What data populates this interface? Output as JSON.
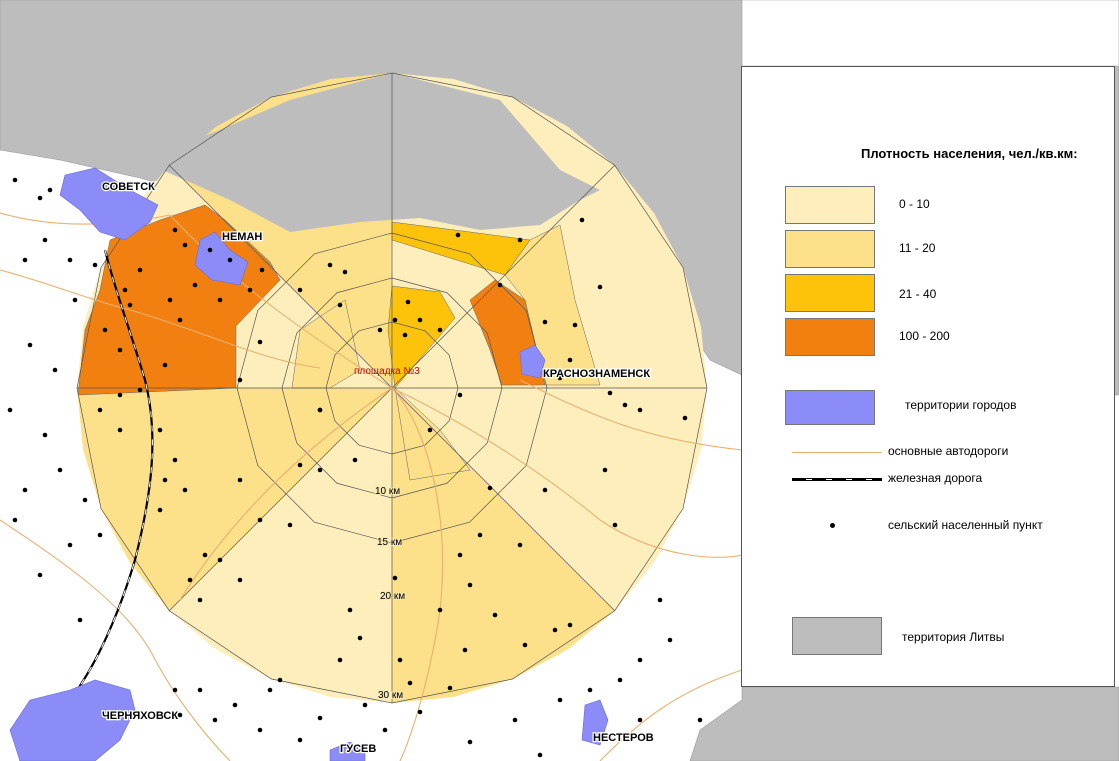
{
  "colors": {
    "density_0_10": "#fdeebc",
    "density_11_20": "#fde08a",
    "density_21_40": "#fcc30a",
    "density_100_200": "#f28010",
    "city": "#8c8cf8",
    "lithuania": "#bdbdbd",
    "road": "#e8b070",
    "rail": "#000000",
    "settlement": "#000000"
  },
  "map": {
    "site_label": "площадка №3",
    "ring_labels": [
      "10 км",
      "15 км",
      "20 км",
      "30 км"
    ],
    "cities": [
      "СОВЕТСК",
      "НЕМАН",
      "КРАСНОЗНАМЕНСК",
      "ЧЕРНЯХОВСК",
      "ГУСЕВ",
      "НЕСТЕРОВ"
    ]
  },
  "legend": {
    "title": "Плотность населения, чел./кв.км:",
    "density_classes": [
      "0 - 10",
      "11 - 20",
      "21 - 40",
      "100 - 200"
    ],
    "cities": "территории городов",
    "roads": "основные автодороги",
    "railway": "железная дорога",
    "settlement": "сельский населенный пункт",
    "lithuania": "территория Литвы"
  }
}
